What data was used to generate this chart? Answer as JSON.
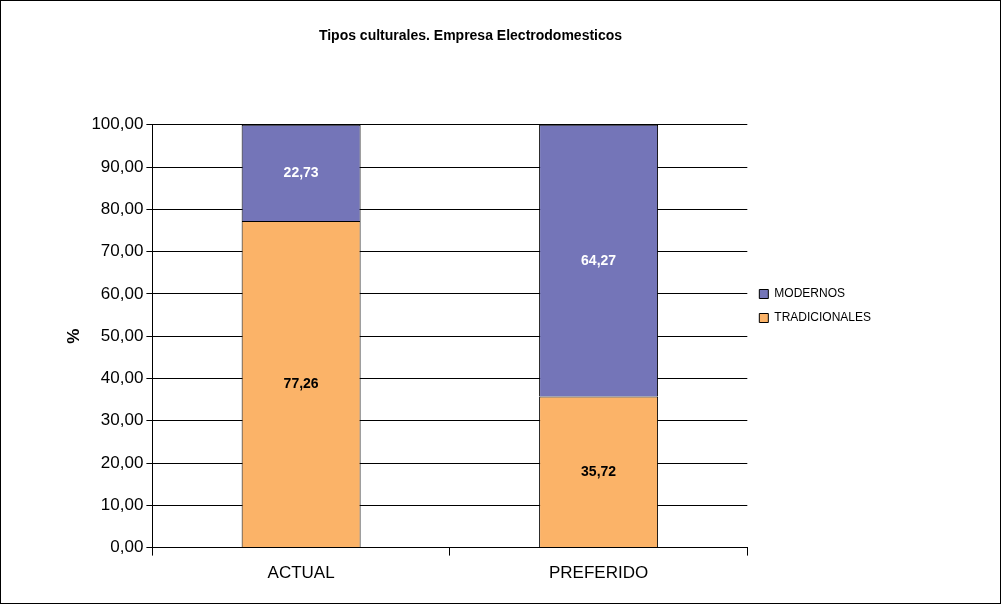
{
  "chart_data": {
    "type": "bar",
    "title": "Tipos culturales. Empresa Electrodomesticos",
    "ylabel": "%",
    "categories": [
      "ACTUAL",
      "PREFERIDO"
    ],
    "stacked": true,
    "series": [
      {
        "name": "TRADICIONALES",
        "color": "#fbb368",
        "values": [
          77.26,
          35.72
        ],
        "value_labels": [
          "77,26",
          "35,72"
        ]
      },
      {
        "name": "MODERNOS",
        "color": "#7475b8",
        "values": [
          22.73,
          64.27
        ],
        "value_labels": [
          "22,73",
          "64,27"
        ]
      }
    ],
    "ylim": [
      0,
      100
    ],
    "yticks": [
      {
        "value": 0,
        "label": "0,00"
      },
      {
        "value": 10,
        "label": "10,00"
      },
      {
        "value": 20,
        "label": "20,00"
      },
      {
        "value": 30,
        "label": "30,00"
      },
      {
        "value": 40,
        "label": "40,00"
      },
      {
        "value": 50,
        "label": "50,00"
      },
      {
        "value": 60,
        "label": "60,00"
      },
      {
        "value": 70,
        "label": "70,00"
      },
      {
        "value": 80,
        "label": "80,00"
      },
      {
        "value": 90,
        "label": "90,00"
      },
      {
        "value": 100,
        "label": "100,00"
      }
    ],
    "grid": "y",
    "legend": "right"
  }
}
